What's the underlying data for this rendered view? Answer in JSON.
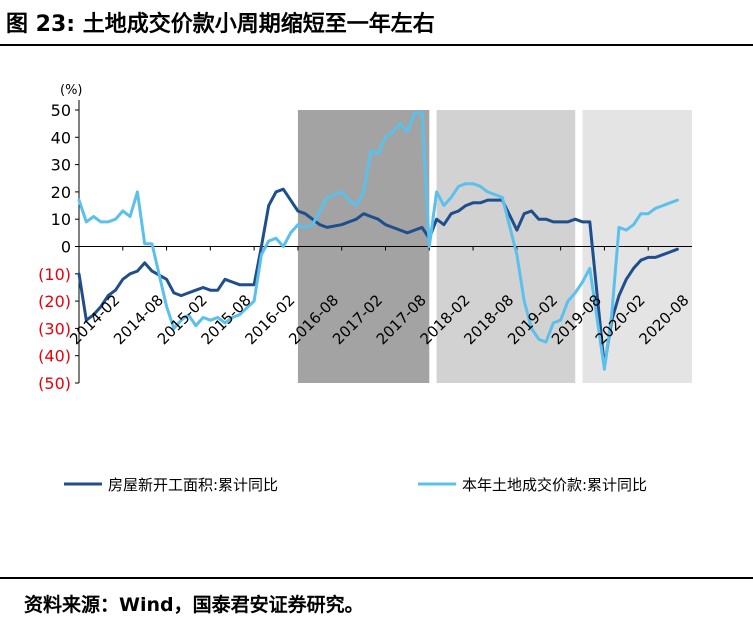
{
  "title": "图 23: 土地成交价款小周期缩短至一年左右",
  "source": "资料来源：Wind，国泰君安证券研究。",
  "chart_data": {
    "type": "line",
    "unit_label": "(%)",
    "ylim": [
      -50,
      50
    ],
    "yticks": [
      {
        "value": 50,
        "label": "50"
      },
      {
        "value": 40,
        "label": "40"
      },
      {
        "value": 30,
        "label": "30"
      },
      {
        "value": 20,
        "label": "20"
      },
      {
        "value": 10,
        "label": "10"
      },
      {
        "value": 0,
        "label": "0"
      },
      {
        "value": -10,
        "label": "(10)"
      },
      {
        "value": -20,
        "label": "(20)"
      },
      {
        "value": -30,
        "label": "(30)"
      },
      {
        "value": -40,
        "label": "(40)"
      },
      {
        "value": -50,
        "label": "(50)"
      }
    ],
    "negative_label_color": "#e8000b",
    "xlim": [
      "2014-02",
      "2021-02"
    ],
    "xticks": [
      "2014-02",
      "2014-08",
      "2015-02",
      "2015-08",
      "2016-02",
      "2016-08",
      "2017-02",
      "2017-08",
      "2018-02",
      "2018-08",
      "2019-02",
      "2019-08",
      "2020-02",
      "2020-08"
    ],
    "shaded_periods": [
      {
        "start": "2016-08",
        "end": "2018-02",
        "color": "#a3a3a3"
      },
      {
        "start": "2018-03",
        "end": "2019-10",
        "color": "#d2d2d2"
      },
      {
        "start": "2019-11",
        "end": "2021-02",
        "color": "#e4e4e4"
      }
    ],
    "series": [
      {
        "name": "房屋新开工面积:累计同比",
        "color": "#1f4e8c",
        "points": [
          [
            "2014-02",
            -10
          ],
          [
            "2014-03",
            -27
          ],
          [
            "2014-04",
            -25
          ],
          [
            "2014-05",
            -22
          ],
          [
            "2014-06",
            -18
          ],
          [
            "2014-07",
            -16
          ],
          [
            "2014-08",
            -12
          ],
          [
            "2014-09",
            -10
          ],
          [
            "2014-10",
            -9
          ],
          [
            "2014-11",
            -6
          ],
          [
            "2014-12",
            -9
          ],
          [
            "2015-02",
            -12
          ],
          [
            "2015-03",
            -17
          ],
          [
            "2015-04",
            -18
          ],
          [
            "2015-05",
            -17
          ],
          [
            "2015-06",
            -16
          ],
          [
            "2015-07",
            -15
          ],
          [
            "2015-08",
            -16
          ],
          [
            "2015-09",
            -16
          ],
          [
            "2015-10",
            -12
          ],
          [
            "2015-11",
            -13
          ],
          [
            "2015-12",
            -14
          ],
          [
            "2016-02",
            -14
          ],
          [
            "2016-03",
            0
          ],
          [
            "2016-04",
            15
          ],
          [
            "2016-05",
            20
          ],
          [
            "2016-06",
            21
          ],
          [
            "2016-07",
            17
          ],
          [
            "2016-08",
            13
          ],
          [
            "2016-09",
            12
          ],
          [
            "2016-10",
            10
          ],
          [
            "2016-11",
            8
          ],
          [
            "2016-12",
            7
          ],
          [
            "2017-02",
            8
          ],
          [
            "2017-03",
            9
          ],
          [
            "2017-04",
            10
          ],
          [
            "2017-05",
            12
          ],
          [
            "2017-06",
            11
          ],
          [
            "2017-07",
            10
          ],
          [
            "2017-08",
            8
          ],
          [
            "2017-09",
            7
          ],
          [
            "2017-10",
            6
          ],
          [
            "2017-11",
            5
          ],
          [
            "2017-12",
            6
          ],
          [
            "2018-01",
            7
          ],
          [
            "2018-02",
            3
          ],
          [
            "2018-03",
            10
          ],
          [
            "2018-04",
            8
          ],
          [
            "2018-05",
            12
          ],
          [
            "2018-06",
            13
          ],
          [
            "2018-07",
            15
          ],
          [
            "2018-08",
            16
          ],
          [
            "2018-09",
            16
          ],
          [
            "2018-10",
            17
          ],
          [
            "2018-11",
            17
          ],
          [
            "2018-12",
            17
          ],
          [
            "2019-02",
            6
          ],
          [
            "2019-03",
            12
          ],
          [
            "2019-04",
            13
          ],
          [
            "2019-05",
            10
          ],
          [
            "2019-06",
            10
          ],
          [
            "2019-07",
            9
          ],
          [
            "2019-08",
            9
          ],
          [
            "2019-09",
            9
          ],
          [
            "2019-10",
            10
          ],
          [
            "2019-11",
            9
          ],
          [
            "2019-12",
            9
          ],
          [
            "2020-02",
            -44
          ],
          [
            "2020-03",
            -27
          ],
          [
            "2020-04",
            -18
          ],
          [
            "2020-05",
            -12
          ],
          [
            "2020-06",
            -8
          ],
          [
            "2020-07",
            -5
          ],
          [
            "2020-08",
            -4
          ],
          [
            "2020-09",
            -4
          ],
          [
            "2020-10",
            -3
          ],
          [
            "2020-11",
            -2
          ],
          [
            "2020-12",
            -1
          ]
        ]
      },
      {
        "name": "本年土地成交价款:累计同比",
        "color": "#5bc0eb",
        "points": [
          [
            "2014-02",
            17
          ],
          [
            "2014-03",
            9
          ],
          [
            "2014-04",
            11
          ],
          [
            "2014-05",
            9
          ],
          [
            "2014-06",
            9
          ],
          [
            "2014-07",
            10
          ],
          [
            "2014-08",
            13
          ],
          [
            "2014-09",
            11
          ],
          [
            "2014-10",
            20
          ],
          [
            "2014-11",
            1
          ],
          [
            "2014-12",
            1
          ],
          [
            "2015-02",
            -22
          ],
          [
            "2015-03",
            -30
          ],
          [
            "2015-04",
            -27
          ],
          [
            "2015-05",
            -25
          ],
          [
            "2015-06",
            -29
          ],
          [
            "2015-07",
            -26
          ],
          [
            "2015-08",
            -27
          ],
          [
            "2015-09",
            -26
          ],
          [
            "2015-10",
            -28
          ],
          [
            "2015-11",
            -26
          ],
          [
            "2015-12",
            -25
          ],
          [
            "2016-02",
            -20
          ],
          [
            "2016-03",
            -3
          ],
          [
            "2016-04",
            2
          ],
          [
            "2016-05",
            3
          ],
          [
            "2016-06",
            0
          ],
          [
            "2016-07",
            5
          ],
          [
            "2016-08",
            8
          ],
          [
            "2016-09",
            7
          ],
          [
            "2016-10",
            8
          ],
          [
            "2016-11",
            13
          ],
          [
            "2016-12",
            18
          ],
          [
            "2017-02",
            20
          ],
          [
            "2017-03",
            17
          ],
          [
            "2017-04",
            15
          ],
          [
            "2017-05",
            20
          ],
          [
            "2017-06",
            35
          ],
          [
            "2017-07",
            34
          ],
          [
            "2017-08",
            40
          ],
          [
            "2017-09",
            42
          ],
          [
            "2017-10",
            45
          ],
          [
            "2017-11",
            42
          ],
          [
            "2017-12",
            49
          ],
          [
            "2018-01",
            49
          ],
          [
            "2018-02",
            0
          ],
          [
            "2018-03",
            20
          ],
          [
            "2018-04",
            15
          ],
          [
            "2018-05",
            18
          ],
          [
            "2018-06",
            22
          ],
          [
            "2018-07",
            23
          ],
          [
            "2018-08",
            23
          ],
          [
            "2018-09",
            22
          ],
          [
            "2018-10",
            20
          ],
          [
            "2018-11",
            19
          ],
          [
            "2018-12",
            18
          ],
          [
            "2019-02",
            -3
          ],
          [
            "2019-03",
            -20
          ],
          [
            "2019-04",
            -30
          ],
          [
            "2019-05",
            -34
          ],
          [
            "2019-06",
            -35
          ],
          [
            "2019-07",
            -28
          ],
          [
            "2019-08",
            -27
          ],
          [
            "2019-09",
            -20
          ],
          [
            "2019-10",
            -17
          ],
          [
            "2019-11",
            -13
          ],
          [
            "2019-12",
            -8
          ],
          [
            "2020-02",
            -45
          ],
          [
            "2020-03",
            -25
          ],
          [
            "2020-04",
            7
          ],
          [
            "2020-05",
            6
          ],
          [
            "2020-06",
            8
          ],
          [
            "2020-07",
            12
          ],
          [
            "2020-08",
            12
          ],
          [
            "2020-09",
            14
          ],
          [
            "2020-10",
            15
          ],
          [
            "2020-11",
            16
          ],
          [
            "2020-12",
            17
          ]
        ]
      }
    ]
  }
}
